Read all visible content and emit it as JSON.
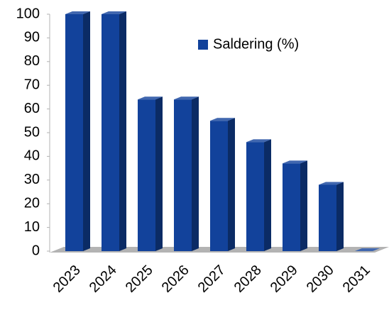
{
  "chart_data": {
    "type": "bar",
    "categories": [
      "2023",
      "2024",
      "2025",
      "2026",
      "2027",
      "2028",
      "2029",
      "2030",
      "2031"
    ],
    "series": [
      {
        "name": "Saldering (%)",
        "color": "#12429b",
        "values": [
          100,
          100,
          64,
          64,
          55,
          46,
          37,
          28,
          0
        ]
      }
    ],
    "ylim": [
      0,
      100
    ],
    "yticks": [
      0,
      10,
      20,
      30,
      40,
      50,
      60,
      70,
      80,
      90,
      100
    ],
    "legend": "upper right"
  }
}
